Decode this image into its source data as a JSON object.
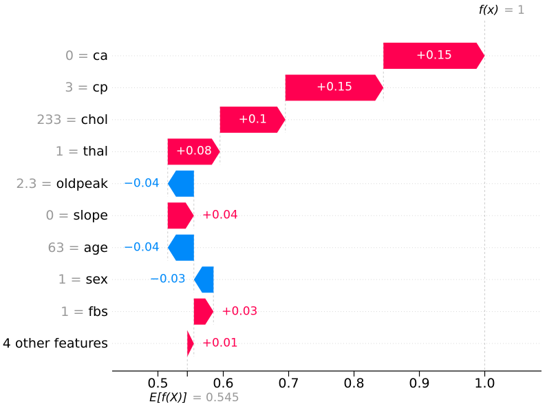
{
  "chart_data": {
    "type": "waterfall",
    "description": "SHAP waterfall plot of feature contributions",
    "fx_annotation": {
      "func": "f(x)",
      "equals_value": " = 1"
    },
    "base_annotation": {
      "func": "E[f(X)]",
      "equals_value": " = 0.545"
    },
    "fx_value": 1.0,
    "base_value": 0.545,
    "xticks": [
      "0.5",
      "0.6",
      "0.7",
      "0.8",
      "0.9",
      "1.0"
    ],
    "xtick_values": [
      0.5,
      0.6,
      0.7,
      0.8,
      0.9,
      1.0
    ],
    "xlim": [
      0.43,
      1.0868
    ],
    "grid": "dotted horizontal per row",
    "legend": "none",
    "colors": {
      "positive": "#ff0051",
      "negative": "#008afa",
      "inside_label": "#ffffff",
      "gray_text": "#999999",
      "dashed_line": "#cccccc",
      "gridline": "#d8d8d8",
      "axis": "#000000"
    },
    "rows": [
      {
        "prefix": "0 = ",
        "feature": "ca",
        "label": "+0.15",
        "shap": 0.15,
        "from": 0.845,
        "to": 1.0,
        "sign": "positive",
        "label_placement": "inside"
      },
      {
        "prefix": "3 = ",
        "feature": "cp",
        "label": "+0.15",
        "shap": 0.15,
        "from": 0.695,
        "to": 0.845,
        "sign": "positive",
        "label_placement": "inside"
      },
      {
        "prefix": "233 = ",
        "feature": "chol",
        "label": "+0.1",
        "shap": 0.1,
        "from": 0.595,
        "to": 0.695,
        "sign": "positive",
        "label_placement": "inside"
      },
      {
        "prefix": "1 = ",
        "feature": "thal",
        "label": "+0.08",
        "shap": 0.08,
        "from": 0.515,
        "to": 0.595,
        "sign": "positive",
        "label_placement": "inside"
      },
      {
        "prefix": "2.3 = ",
        "feature": "oldpeak",
        "label": "−0.04",
        "shap": -0.04,
        "from": 0.555,
        "to": 0.515,
        "sign": "negative",
        "label_placement": "left"
      },
      {
        "prefix": "0 = ",
        "feature": "slope",
        "label": "+0.04",
        "shap": 0.04,
        "from": 0.515,
        "to": 0.555,
        "sign": "positive",
        "label_placement": "right"
      },
      {
        "prefix": "63 = ",
        "feature": "age",
        "label": "−0.04",
        "shap": -0.04,
        "from": 0.555,
        "to": 0.515,
        "sign": "negative",
        "label_placement": "left"
      },
      {
        "prefix": "1 = ",
        "feature": "sex",
        "label": "−0.03",
        "shap": -0.03,
        "from": 0.585,
        "to": 0.555,
        "sign": "negative",
        "label_placement": "left"
      },
      {
        "prefix": "1 = ",
        "feature": "fbs",
        "label": "+0.03",
        "shap": 0.03,
        "from": 0.555,
        "to": 0.585,
        "sign": "positive",
        "label_placement": "right"
      },
      {
        "prefix": "",
        "feature": "4 other features",
        "label": "+0.01",
        "shap": 0.01,
        "from": 0.545,
        "to": 0.555,
        "sign": "positive",
        "label_placement": "right"
      }
    ]
  }
}
